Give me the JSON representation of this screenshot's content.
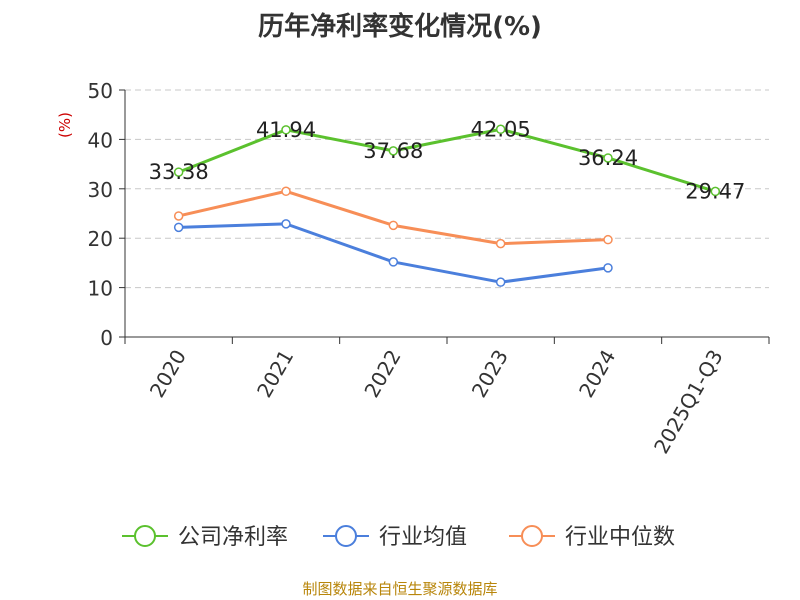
{
  "chart_data": {
    "type": "line",
    "title": "历年净利率变化情况(%)",
    "ylabel": "(%)",
    "categories": [
      "2020",
      "2021",
      "2022",
      "2023",
      "2024",
      "2025Q1-Q3"
    ],
    "ylim": [
      0,
      50
    ],
    "yticks": [
      0,
      10,
      20,
      30,
      40,
      50
    ],
    "grid": true,
    "legend_position": "bottom",
    "series": [
      {
        "name": "公司净利率",
        "color": "#5bc12e",
        "values": [
          33.38,
          41.94,
          37.68,
          42.05,
          36.24,
          29.47
        ],
        "labels": true
      },
      {
        "name": "行业均值",
        "color": "#4b7fdc",
        "values": [
          22.2,
          22.9,
          15.2,
          11.1,
          14.0,
          null
        ],
        "labels": false
      },
      {
        "name": "行业中位数",
        "color": "#f78e57",
        "values": [
          24.5,
          29.5,
          22.6,
          18.9,
          19.7,
          null
        ],
        "labels": false
      }
    ]
  },
  "source": "制图数据来自恒生聚源数据库"
}
